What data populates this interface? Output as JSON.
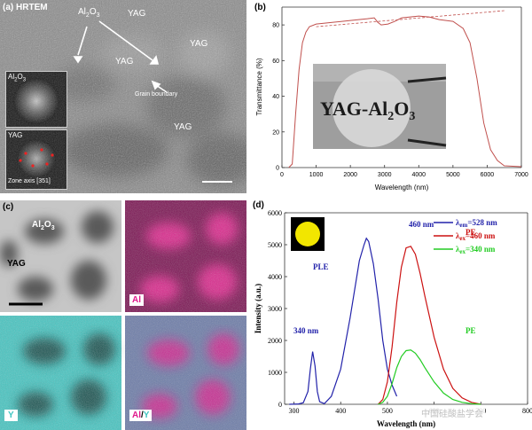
{
  "panel_a": {
    "label": "(a)",
    "mode": "HRTEM",
    "al2o3_main": "Al",
    "al2o3_main_sub": "2",
    "al2o3_main_o": "O",
    "al2o3_main_sub2": "3",
    "yag_labels": [
      "YAG",
      "YAG",
      "YAG",
      "YAG"
    ],
    "grain_boundary": "Grain boundary",
    "inset_top": "Al",
    "inset_top_sub": "2",
    "inset_top_o": "O",
    "inset_top_sub2": "3",
    "inset_bottom": "YAG",
    "zone_axis": "Zone axis [351]"
  },
  "panel_b": {
    "label": "(b)",
    "photo_text_1": "YAG-Al",
    "photo_text_sub1": "2",
    "photo_text_2": "O",
    "photo_text_sub2": "3",
    "chart_data": {
      "type": "line",
      "xlabel": "Wavelength (nm)",
      "ylabel": "Transmittance (%)",
      "xlim": [
        0,
        7000
      ],
      "ylim": [
        0,
        90
      ],
      "xticks": [
        "0",
        "1000",
        "2000",
        "3000",
        "4000",
        "5000",
        "6000",
        "7000"
      ],
      "yticks": [
        "0",
        "20",
        "40",
        "60",
        "80"
      ],
      "series": [
        {
          "color": "#c0504d",
          "x": [
            200,
            300,
            400,
            500,
            600,
            700,
            800,
            1000,
            1500,
            2000,
            2500,
            2700,
            2800,
            2900,
            3100,
            3300,
            3500,
            4000,
            4300,
            4600,
            5000,
            5300,
            5500,
            5700,
            5900,
            6100,
            6300,
            6500,
            7000
          ],
          "y": [
            0,
            2,
            30,
            55,
            70,
            76,
            79,
            80.5,
            81.5,
            82.5,
            83.5,
            84,
            81.5,
            80,
            80.5,
            82,
            84,
            85,
            84.5,
            83,
            82,
            78,
            70,
            50,
            25,
            10,
            4,
            1,
            0.5
          ]
        }
      ],
      "reference_line": {
        "x": [
          1000,
          6500
        ],
        "y": [
          79,
          88
        ]
      }
    }
  },
  "panel_c": {
    "label": "(c)",
    "al2o3": "Al",
    "al2o3_sub": "2",
    "al2o3_o": "O",
    "al2o3_sub2": "3",
    "yag": "YAG",
    "map_al": "Al",
    "map_y": "Y",
    "map_overlay_al": "Al",
    "map_overlay_slash": "/",
    "map_overlay_y": "Y",
    "color_al": "#e0198c",
    "color_y": "#3fc6c2"
  },
  "panel_d": {
    "label": "(d)",
    "legend": [
      {
        "prefix": "λ",
        "sub": "em",
        "value": "=528 nm",
        "color": "#2222aa"
      },
      {
        "prefix": "λ",
        "sub": "ex",
        "value": "=460 nm",
        "color": "#cc1111"
      },
      {
        "prefix": "λ",
        "sub": "ex",
        "value": "=340 nm",
        "color": "#22cc22"
      }
    ],
    "annotations": {
      "ple": "PLE",
      "pe1": "PE",
      "pe2": "PE",
      "peak460": "460 nm",
      "peak340": "340 nm"
    },
    "chart_data": {
      "type": "line",
      "xlabel": "Wavelength (nm)",
      "ylabel": "Intensity (a.u.)",
      "xlim": [
        280,
        800
      ],
      "ylim": [
        0,
        6000
      ],
      "xticks": [
        "300",
        "400",
        "500",
        "600",
        "700",
        "800"
      ],
      "yticks": [
        "0",
        "1000",
        "2000",
        "3000",
        "4000",
        "5000",
        "6000"
      ],
      "series": [
        {
          "name": "λem=528 nm",
          "color": "#2222aa",
          "x": [
            290,
            310,
            320,
            330,
            335,
            340,
            345,
            350,
            355,
            365,
            380,
            400,
            420,
            440,
            450,
            455,
            460,
            470,
            480,
            490,
            500,
            510,
            520
          ],
          "y": [
            0,
            10,
            50,
            400,
            1100,
            1650,
            1200,
            400,
            80,
            20,
            250,
            1100,
            2700,
            4500,
            5000,
            5200,
            5100,
            4400,
            3300,
            2000,
            1100,
            600,
            250
          ]
        },
        {
          "name": "λex=460 nm",
          "color": "#cc1111",
          "x": [
            480,
            490,
            500,
            510,
            520,
            530,
            540,
            550,
            560,
            570,
            580,
            600,
            620,
            640,
            660,
            680,
            700
          ],
          "y": [
            0,
            150,
            700,
            1800,
            3200,
            4300,
            4900,
            4950,
            4700,
            4100,
            3400,
            2100,
            1100,
            500,
            200,
            60,
            0
          ]
        },
        {
          "name": "λex=340 nm",
          "color": "#22cc22",
          "x": [
            480,
            490,
            500,
            510,
            520,
            530,
            540,
            550,
            560,
            570,
            580,
            600,
            620,
            640,
            660,
            680,
            700
          ],
          "y": [
            0,
            60,
            250,
            650,
            1150,
            1500,
            1680,
            1700,
            1600,
            1400,
            1150,
            700,
            350,
            150,
            60,
            20,
            0
          ]
        }
      ]
    }
  },
  "watermark": "中国硅酸盐学会"
}
